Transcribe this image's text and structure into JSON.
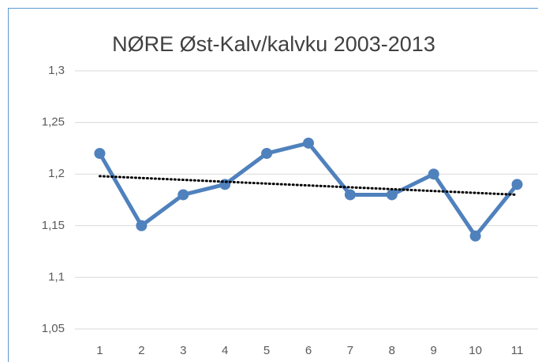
{
  "chart_data": {
    "type": "line",
    "title": "NØRE Øst-Kalv/kalvku 2003-2013",
    "categories": [
      "1",
      "2",
      "3",
      "4",
      "5",
      "6",
      "7",
      "8",
      "9",
      "10",
      "11"
    ],
    "series": [
      {
        "color": "#4f81bd",
        "values": [
          1.22,
          1.15,
          1.18,
          1.19,
          1.22,
          1.23,
          1.18,
          1.18,
          1.2,
          1.14,
          1.19
        ]
      }
    ],
    "trendline": {
      "start": 1.198,
      "end": 1.18,
      "color": "#000000"
    },
    "ylim": [
      1.05,
      1.3
    ],
    "yticks": [
      {
        "value": 1.05,
        "label": "1,05"
      },
      {
        "value": 1.1,
        "label": "1,1"
      },
      {
        "value": 1.15,
        "label": "1,15"
      },
      {
        "value": 1.2,
        "label": "1,2"
      },
      {
        "value": 1.25,
        "label": "1,25"
      },
      {
        "value": 1.3,
        "label": "1,3"
      }
    ],
    "grid": true
  }
}
